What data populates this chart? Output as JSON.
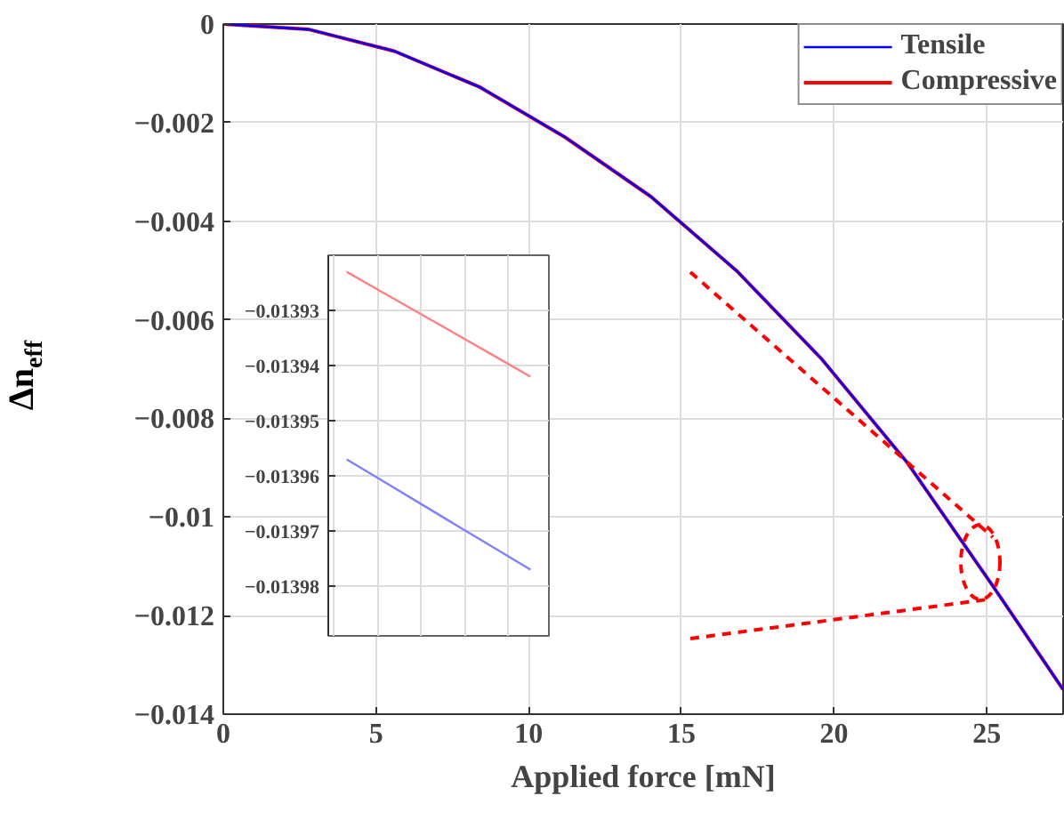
{
  "chart_data": [
    {
      "type": "line",
      "xlabel": "Applied force [mN]",
      "ylabel": "Δn$_{eff}$",
      "x": [
        0,
        2.8,
        5.6,
        8.4,
        11.2,
        14.0,
        16.8,
        19.6,
        22.4,
        25.2,
        27.5
      ],
      "series": [
        {
          "name": "Tensile",
          "color": "#0000ff",
          "values": [
            0,
            -0.00011,
            -0.00055,
            -0.00128,
            -0.0023,
            -0.0035,
            -0.005,
            -0.0068,
            -0.0089,
            -0.0114,
            -0.0135
          ]
        },
        {
          "name": "Compressive",
          "color": "#ff0000",
          "values": [
            0,
            -0.00011,
            -0.00055,
            -0.00128,
            -0.0023,
            -0.0035,
            -0.005,
            -0.0068,
            -0.0089,
            -0.0114,
            -0.0135
          ]
        }
      ],
      "xlim": [
        0,
        27.5
      ],
      "xticks": [
        0,
        5,
        10,
        15,
        20,
        25
      ],
      "ylim": [
        -0.014,
        0
      ],
      "yticks": [
        {
          "value": -0.014,
          "label": "−0.014"
        },
        {
          "value": -0.012,
          "label": "−0.012"
        },
        {
          "value": -0.01,
          "label": "−0.01"
        },
        {
          "value": -0.008,
          "label": "−0.008"
        },
        {
          "value": -0.006,
          "label": "−0.006"
        },
        {
          "value": -0.004,
          "label": "−0.004"
        },
        {
          "value": -0.002,
          "label": "−0.002"
        },
        0
      ],
      "grid": true,
      "legend": "top right",
      "marker": "none",
      "line_style": "solid"
    },
    {
      "type": "line",
      "categories": [
        null,
        null,
        null,
        null,
        null,
        null
      ],
      "series": [
        {
          "color": "#8080ff",
          "values": [
            -0.013957,
            -0.013961,
            -0.013965,
            -0.013969,
            -0.013973,
            -0.013977
          ]
        },
        {
          "color": "#ff8080",
          "values": [
            -0.013923,
            -0.0139268,
            -0.0139306,
            -0.0139344,
            -0.0139382,
            -0.013942
          ]
        }
      ],
      "ylim": [
        -0.013989,
        -0.01392
      ],
      "yticks": [
        {
          "value": -0.01398,
          "label": "−0.01398"
        },
        {
          "value": -0.01397,
          "label": "−0.01397"
        },
        {
          "value": -0.01396,
          "label": "−0.01396"
        },
        {
          "value": -0.01395,
          "label": "−0.01395"
        },
        {
          "value": -0.01394,
          "label": "−0.01394"
        },
        {
          "value": -0.01393,
          "label": "−0.01393"
        }
      ],
      "tick_labels": "y",
      "grid": true,
      "marker": "none",
      "line_style": "solid"
    }
  ]
}
